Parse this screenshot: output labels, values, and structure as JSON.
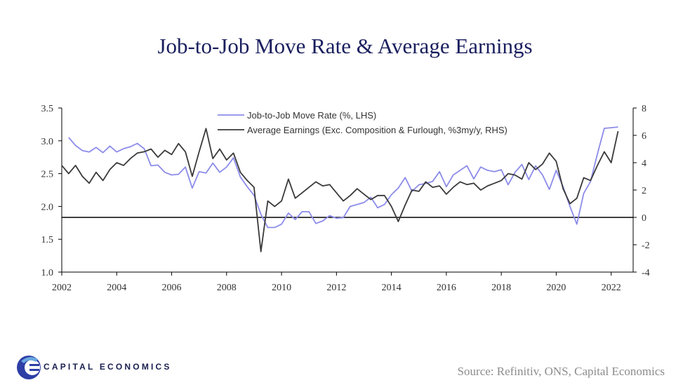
{
  "title": "Job-to-Job Move Rate & Average Earnings",
  "source": "Source: Refinitiv, ONS, Capital Economics",
  "brand": {
    "name": "CAPITAL ECONOMICS",
    "logo_icon": "capital-economics-c-icon"
  },
  "colors": {
    "series_lhs": "#8c8cea",
    "series_rhs": "#3a3a3a",
    "zero_line": "#000000",
    "title": "#1a1f5e",
    "logo_blue": "#2e3fa6",
    "logo_light": "#6aa8e0"
  },
  "chart_data": {
    "type": "line",
    "title": "Job-to-Job Move Rate & Average Earnings",
    "xlim": [
      2002,
      2022.8
    ],
    "x_ticks": [
      "2002",
      "2004",
      "2006",
      "2008",
      "2010",
      "2012",
      "2014",
      "2016",
      "2018",
      "2020",
      "2022"
    ],
    "y_left": {
      "lim": [
        1.0,
        3.5
      ],
      "ticks": [
        "1.0",
        "1.5",
        "2.0",
        "2.5",
        "3.0",
        "3.5"
      ]
    },
    "y_right": {
      "lim": [
        -4,
        8
      ],
      "ticks": [
        "-4",
        "-2",
        "0",
        "2",
        "4",
        "6",
        "8"
      ]
    },
    "legend_placement": "top-center",
    "grid": false,
    "series": [
      {
        "name": "Job-to-Job Move Rate (%, LHS)",
        "axis": "left",
        "x": [
          2002.25,
          2002.5,
          2002.75,
          2003.0,
          2003.25,
          2003.5,
          2003.75,
          2004.0,
          2004.25,
          2004.5,
          2004.75,
          2005.0,
          2005.25,
          2005.5,
          2005.75,
          2006.0,
          2006.25,
          2006.5,
          2006.75,
          2007.0,
          2007.25,
          2007.5,
          2007.75,
          2008.0,
          2008.25,
          2008.5,
          2008.75,
          2009.0,
          2009.25,
          2009.5,
          2009.75,
          2010.0,
          2010.25,
          2010.5,
          2010.75,
          2011.0,
          2011.25,
          2011.5,
          2011.75,
          2012.0,
          2012.25,
          2012.5,
          2012.75,
          2013.0,
          2013.25,
          2013.5,
          2013.75,
          2014.0,
          2014.25,
          2014.5,
          2014.75,
          2015.0,
          2015.25,
          2015.5,
          2015.75,
          2016.0,
          2016.25,
          2016.5,
          2016.75,
          2017.0,
          2017.25,
          2017.5,
          2017.75,
          2018.0,
          2018.25,
          2018.5,
          2018.75,
          2019.0,
          2019.25,
          2019.5,
          2019.75,
          2020.0,
          2020.25,
          2020.5,
          2020.75,
          2021.0,
          2021.25,
          2021.5,
          2021.75,
          2022.0,
          2022.25
        ],
        "values": [
          3.05,
          2.93,
          2.85,
          2.83,
          2.9,
          2.82,
          2.92,
          2.83,
          2.88,
          2.91,
          2.96,
          2.88,
          2.62,
          2.63,
          2.52,
          2.48,
          2.49,
          2.6,
          2.28,
          2.53,
          2.51,
          2.66,
          2.52,
          2.6,
          2.74,
          2.45,
          2.3,
          2.17,
          1.88,
          1.68,
          1.68,
          1.73,
          1.9,
          1.8,
          1.92,
          1.92,
          1.74,
          1.78,
          1.86,
          1.82,
          1.83,
          2.0,
          2.03,
          2.06,
          2.14,
          1.98,
          2.03,
          2.18,
          2.28,
          2.44,
          2.23,
          2.33,
          2.35,
          2.38,
          2.53,
          2.3,
          2.48,
          2.55,
          2.62,
          2.42,
          2.6,
          2.55,
          2.53,
          2.56,
          2.33,
          2.52,
          2.64,
          2.41,
          2.62,
          2.48,
          2.26,
          2.55,
          2.3,
          2.0,
          1.73,
          2.2,
          2.38,
          2.8,
          3.19,
          3.2,
          3.21
        ]
      },
      {
        "name": "Average Earnings (Exc. Composition & Furlough, %3my/y, RHS)",
        "axis": "right",
        "x": [
          2002.0,
          2002.25,
          2002.5,
          2002.75,
          2003.0,
          2003.25,
          2003.5,
          2003.75,
          2004.0,
          2004.25,
          2004.5,
          2004.75,
          2005.0,
          2005.25,
          2005.5,
          2005.75,
          2006.0,
          2006.25,
          2006.5,
          2006.75,
          2007.0,
          2007.25,
          2007.5,
          2007.75,
          2008.0,
          2008.25,
          2008.5,
          2008.75,
          2009.0,
          2009.25,
          2009.5,
          2009.75,
          2010.0,
          2010.25,
          2010.5,
          2010.75,
          2011.0,
          2011.25,
          2011.5,
          2011.75,
          2012.0,
          2012.25,
          2012.5,
          2012.75,
          2013.0,
          2013.25,
          2013.5,
          2013.75,
          2014.0,
          2014.25,
          2014.5,
          2014.75,
          2015.0,
          2015.25,
          2015.5,
          2015.75,
          2016.0,
          2016.25,
          2016.5,
          2016.75,
          2017.0,
          2017.25,
          2017.5,
          2017.75,
          2018.0,
          2018.25,
          2018.5,
          2018.75,
          2019.0,
          2019.25,
          2019.5,
          2019.75,
          2020.0,
          2020.25,
          2020.5,
          2020.75,
          2021.0,
          2021.25,
          2021.5,
          2021.75,
          2022.0,
          2022.25
        ],
        "values": [
          3.8,
          3.2,
          3.8,
          3.0,
          2.5,
          3.3,
          2.7,
          3.5,
          4.0,
          3.8,
          4.3,
          4.7,
          4.8,
          5.0,
          4.4,
          4.9,
          4.6,
          5.4,
          4.8,
          3.0,
          4.8,
          6.5,
          4.3,
          5.0,
          4.2,
          4.7,
          3.3,
          2.7,
          2.2,
          -2.5,
          1.2,
          0.8,
          1.2,
          2.8,
          1.4,
          1.8,
          2.2,
          2.6,
          2.3,
          2.4,
          1.8,
          1.2,
          1.6,
          2.1,
          1.7,
          1.3,
          1.6,
          1.6,
          0.8,
          -0.3,
          0.9,
          2.0,
          1.9,
          2.6,
          2.2,
          2.3,
          1.7,
          2.2,
          2.6,
          2.4,
          2.5,
          2.0,
          2.3,
          2.5,
          2.7,
          3.2,
          3.1,
          2.8,
          4.0,
          3.5,
          3.9,
          4.7,
          4.1,
          2.1,
          1.0,
          1.4,
          2.9,
          2.7,
          3.8,
          4.8,
          4.0,
          6.3
        ]
      }
    ]
  }
}
